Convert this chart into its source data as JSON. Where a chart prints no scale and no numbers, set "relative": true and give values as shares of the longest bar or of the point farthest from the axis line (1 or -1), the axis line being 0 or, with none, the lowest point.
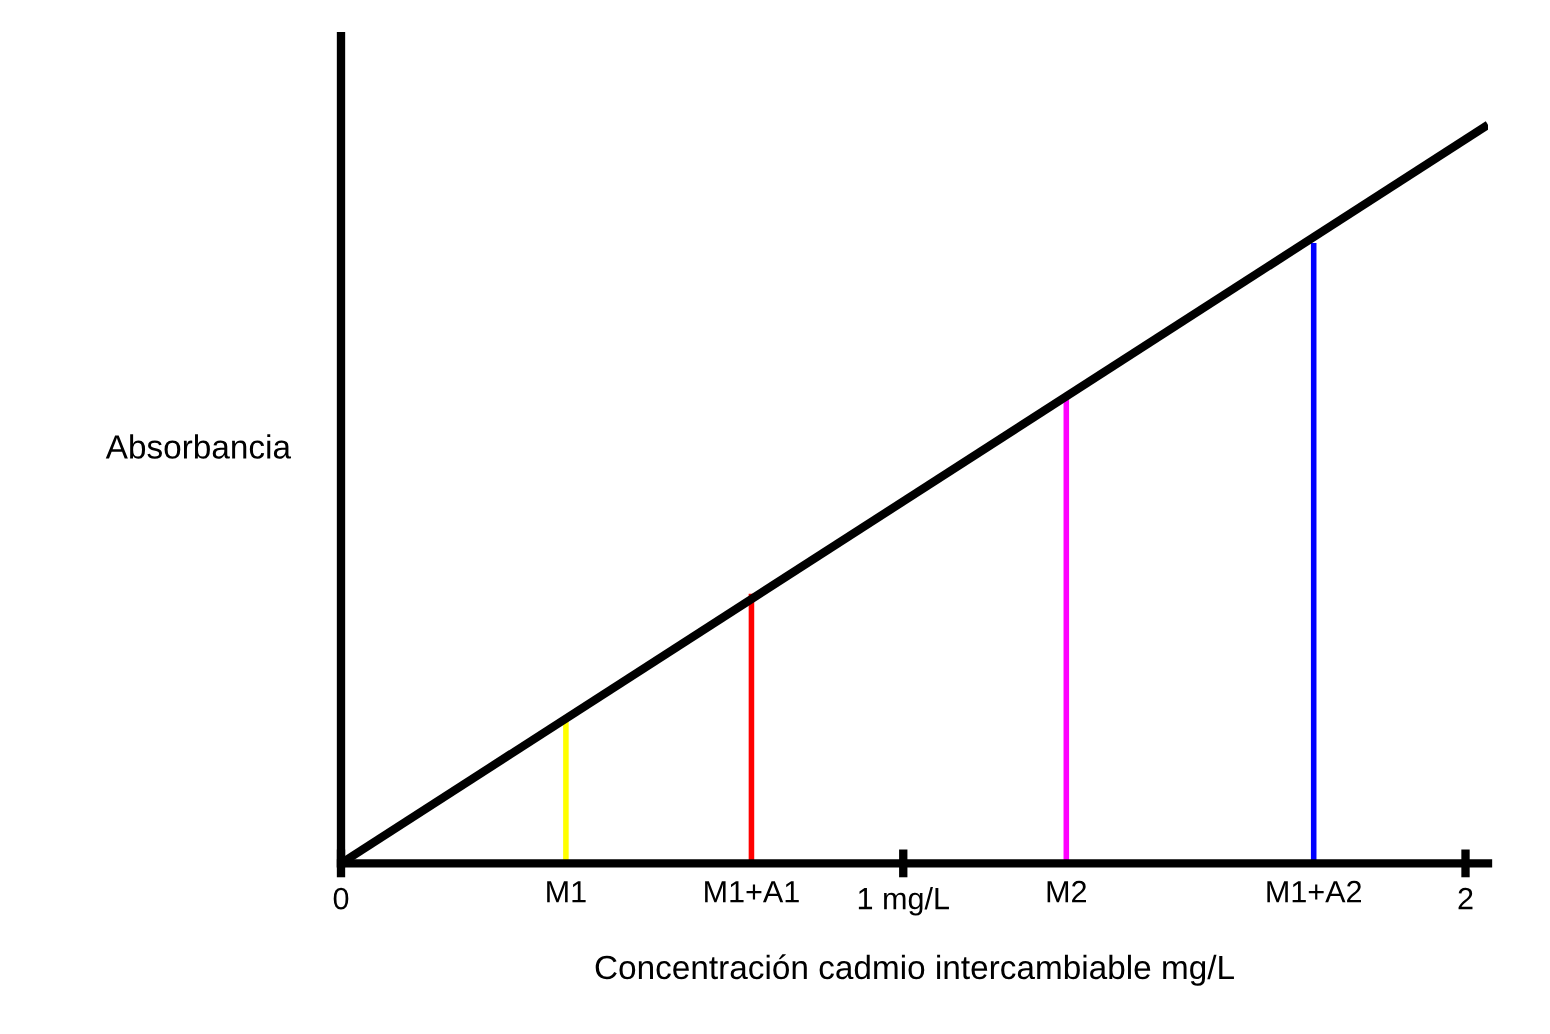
{
  "chart_data": {
    "type": "line",
    "relative": true,
    "xlabel": "Concentración cadmio intercambiable mg/L",
    "ylabel": "Absorbancia",
    "xlim": [
      0,
      2.04
    ],
    "xticks": [
      0,
      {
        "value": 1,
        "label": "1 mg/L"
      },
      2
    ],
    "series": [
      {
        "color": "#000000",
        "x": [
          0,
          2.04
        ],
        "values": [
          0,
          1
        ]
      },
      {
        "color": "#ffff00",
        "x": [
          0.4,
          0.4
        ],
        "values": [
          0,
          0.2
        ]
      },
      {
        "color": "#ff0000",
        "x": [
          0.73,
          0.73
        ],
        "values": [
          0,
          0.365
        ]
      },
      {
        "color": "#ff00ff",
        "x": [
          1.29,
          1.29
        ],
        "values": [
          0,
          0.63
        ]
      },
      {
        "color": "#0000ff",
        "x": [
          1.73,
          1.73
        ],
        "values": [
          0,
          0.84
        ]
      }
    ],
    "annotations": [
      {
        "text": "M1",
        "x": 0.4,
        "y": 0
      },
      {
        "text": "M1+A1",
        "x": 0.73,
        "y": 0
      },
      {
        "text": "M2",
        "x": 1.29,
        "y": 0
      },
      {
        "text": "M1+A2",
        "x": 1.73,
        "y": 0
      }
    ],
    "grid": false,
    "legend": false
  }
}
